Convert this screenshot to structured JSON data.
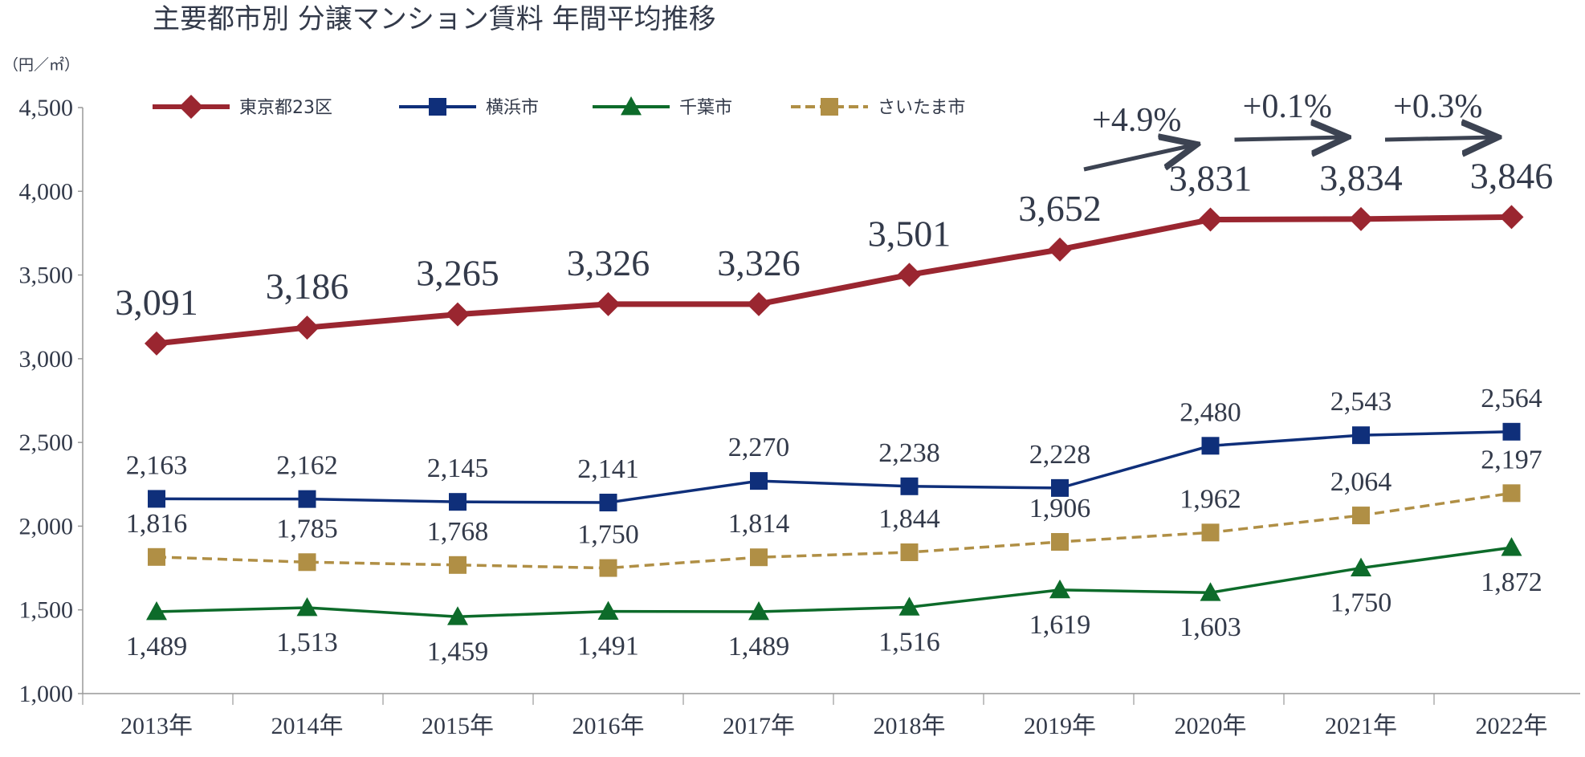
{
  "chart_data": {
    "type": "line",
    "title": "主要都市別 分譲マンション賃料 年間平均推移",
    "unit_label": "（円／㎡）",
    "ylim": [
      1000,
      4500
    ],
    "yticks": [
      "1,000",
      "1,500",
      "2,000",
      "2,500",
      "3,000",
      "3,500",
      "4,000",
      "4,500"
    ],
    "ytick_values": [
      1000,
      1500,
      2000,
      2500,
      3000,
      3500,
      4000,
      4500
    ],
    "categories": [
      "2013年",
      "2014年",
      "2015年",
      "2016年",
      "2017年",
      "2018年",
      "2019年",
      "2020年",
      "2021年",
      "2022年"
    ],
    "legend_position": "top",
    "series": [
      {
        "name": "東京都23区",
        "color": "#9a2630",
        "marker": "diamond",
        "dashed": false,
        "values": [
          3091,
          3186,
          3265,
          3326,
          3326,
          3501,
          3652,
          3831,
          3834,
          3846
        ],
        "labels": [
          "3,091",
          "3,186",
          "3,265",
          "3,326",
          "3,326",
          "3,501",
          "3,652",
          "3,831",
          "3,834",
          "3,846"
        ],
        "label_position": "above"
      },
      {
        "name": "横浜市",
        "color": "#0f2f7a",
        "marker": "square",
        "dashed": false,
        "values": [
          2163,
          2162,
          2145,
          2141,
          2270,
          2238,
          2228,
          2480,
          2543,
          2564
        ],
        "labels": [
          "2,163",
          "2,162",
          "2,145",
          "2,141",
          "2,270",
          "2,238",
          "2,228",
          "2,480",
          "2,543",
          "2,564"
        ],
        "label_position": "above"
      },
      {
        "name": "千葉市",
        "color": "#0d6b2a",
        "marker": "triangle",
        "dashed": false,
        "values": [
          1489,
          1513,
          1459,
          1491,
          1489,
          1516,
          1619,
          1603,
          1750,
          1872
        ],
        "labels": [
          "1,489",
          "1,513",
          "1,459",
          "1,491",
          "1,489",
          "1,516",
          "1,619",
          "1,603",
          "1,750",
          "1,872"
        ],
        "label_position": "below"
      },
      {
        "name": "さいたま市",
        "color": "#b08f45",
        "marker": "square",
        "dashed": true,
        "values": [
          1816,
          1785,
          1768,
          1750,
          1814,
          1844,
          1906,
          1962,
          2064,
          2197
        ],
        "labels": [
          "1,816",
          "1,785",
          "1,768",
          "1,750",
          "1,814",
          "1,844",
          "1,906",
          "1,962",
          "2,064",
          "2,197"
        ],
        "label_position": "above"
      }
    ],
    "annotations": [
      {
        "text": "+4.9%",
        "from_index": 6,
        "to_index": 7
      },
      {
        "text": "+0.1%",
        "from_index": 7,
        "to_index": 8
      },
      {
        "text": "+0.3%",
        "from_index": 8,
        "to_index": 9
      }
    ],
    "axis_color": "#999999",
    "text_color": "#333a4a",
    "arrow_color": "#3c4352"
  }
}
